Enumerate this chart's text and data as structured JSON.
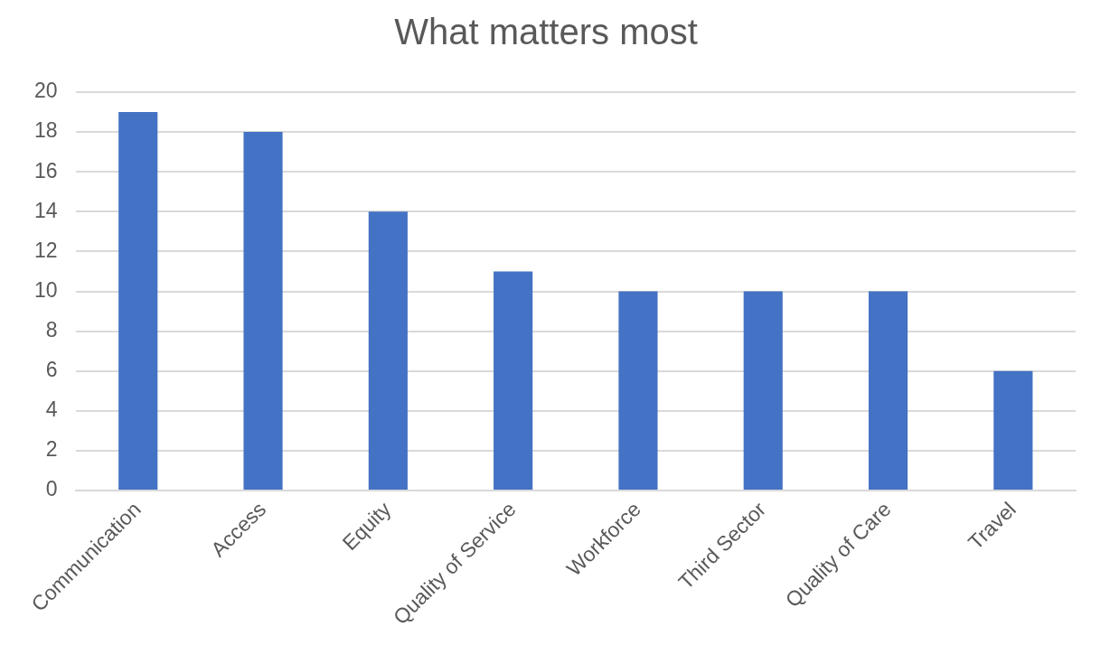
{
  "chart_data": {
    "type": "bar",
    "title": "What matters most",
    "categories": [
      "Communication",
      "Access",
      "Equity",
      "Quality of Service",
      "Workforce",
      "Third Sector",
      "Quality of Care",
      "Travel"
    ],
    "values": [
      19,
      18,
      14,
      11,
      10,
      10,
      10,
      6
    ],
    "color": "#4472c4",
    "ylim": [
      0,
      20
    ],
    "yticks": [
      0,
      2,
      4,
      6,
      8,
      10,
      12,
      14,
      16,
      18,
      20
    ],
    "grid": "y",
    "legend": false
  }
}
